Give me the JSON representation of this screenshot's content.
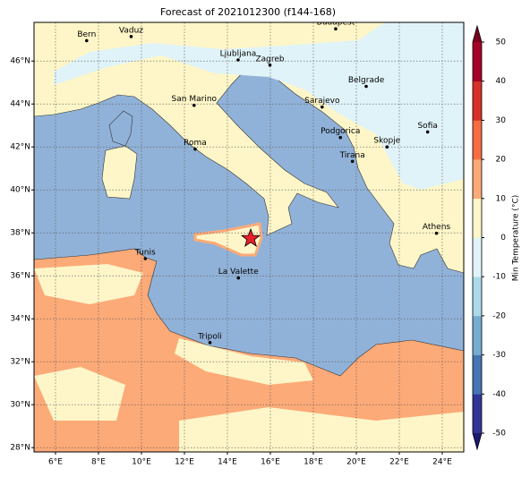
{
  "title": "Forecast of 2021012300 (f144-168)",
  "map": {
    "xlim": [
      5,
      25
    ],
    "ylim": [
      27.8,
      47.8
    ],
    "grid": true,
    "lon_ticks": [
      {
        "value": 6,
        "label": "6°E"
      },
      {
        "value": 8,
        "label": "8°E"
      },
      {
        "value": 10,
        "label": "10°E"
      },
      {
        "value": 12,
        "label": "12°E"
      },
      {
        "value": 14,
        "label": "14°E"
      },
      {
        "value": 16,
        "label": "16°E"
      },
      {
        "value": 18,
        "label": "18°E"
      },
      {
        "value": 20,
        "label": "20°E"
      },
      {
        "value": 22,
        "label": "22°E"
      },
      {
        "value": 24,
        "label": "24°E"
      }
    ],
    "lat_ticks": [
      {
        "value": 28,
        "label": "28°N"
      },
      {
        "value": 30,
        "label": "30°N"
      },
      {
        "value": 32,
        "label": "32°N"
      },
      {
        "value": 34,
        "label": "34°N"
      },
      {
        "value": 36,
        "label": "36°N"
      },
      {
        "value": 38,
        "label": "38°N"
      },
      {
        "value": 40,
        "label": "40°N"
      },
      {
        "value": 42,
        "label": "42°N"
      },
      {
        "value": 44,
        "label": "44°N"
      },
      {
        "value": 46,
        "label": "46°N"
      }
    ],
    "cities": [
      "Bern",
      "Vaduz",
      "Budapest",
      "Ljubljana",
      "Zagreb",
      "San Marino",
      "Belgrade",
      "Sarajevo",
      "Roma",
      "Podgorica",
      "Skopje",
      "Sofia",
      "Tirana",
      "Athens",
      "Tunis",
      "La Valette",
      "Tripoli"
    ]
  },
  "colorbar": {
    "label": "Min Temperature (°C)",
    "lim": [
      -50,
      50
    ],
    "ticks": [
      -50,
      -40,
      -30,
      -20,
      -10,
      0,
      10,
      20,
      30,
      40,
      50
    ],
    "colors": [
      "#313695",
      "#4575b4",
      "#74add1",
      "#abd9e9",
      "#e0f3f8",
      "#fef6c8",
      "#fcaa78",
      "#f46d43",
      "#d73027",
      "#a50026"
    ],
    "under_color": "#1a1a6e",
    "over_color": "#7a0020"
  }
}
